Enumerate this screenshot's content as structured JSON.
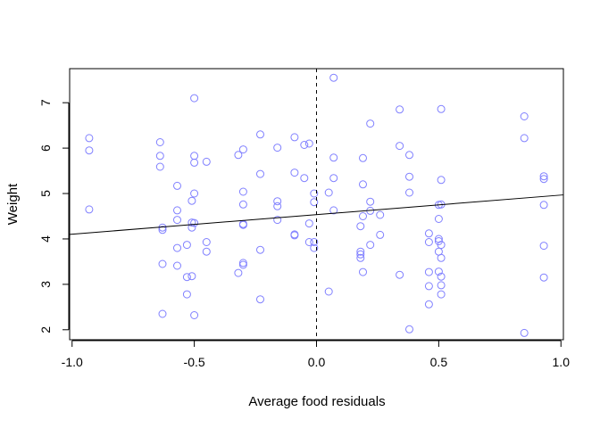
{
  "chart_data": {
    "type": "scatter",
    "title": "",
    "xlabel": "Average food residuals",
    "ylabel": "Weight",
    "xlim": [
      -1.01,
      1.01
    ],
    "ylim": [
      1.78,
      7.75
    ],
    "x_ticks": [
      -1.0,
      -0.5,
      0.0,
      0.5,
      1.0
    ],
    "x_tick_labels": [
      "-1.0",
      "-0.5",
      "0.0",
      "0.5",
      "1.0"
    ],
    "y_ticks": [
      2,
      3,
      4,
      5,
      6,
      7
    ],
    "y_tick_labels": [
      "2",
      "3",
      "4",
      "5",
      "6",
      "7"
    ],
    "grid": false,
    "point_color": "#8080ff",
    "line_color": "#000000",
    "regression_line": {
      "x": [
        -1.01,
        1.01
      ],
      "y": [
        4.1,
        4.97
      ]
    },
    "vertical_dashed_line": {
      "x": 0.0
    },
    "points": [
      {
        "x": -0.93,
        "y": 6.22
      },
      {
        "x": -0.93,
        "y": 5.95
      },
      {
        "x": -0.93,
        "y": 4.65
      },
      {
        "x": -0.64,
        "y": 6.13
      },
      {
        "x": -0.64,
        "y": 5.83
      },
      {
        "x": -0.64,
        "y": 5.59
      },
      {
        "x": -0.63,
        "y": 4.25
      },
      {
        "x": -0.63,
        "y": 4.2
      },
      {
        "x": -0.63,
        "y": 3.45
      },
      {
        "x": -0.63,
        "y": 2.35
      },
      {
        "x": -0.57,
        "y": 5.17
      },
      {
        "x": -0.57,
        "y": 4.63
      },
      {
        "x": -0.57,
        "y": 4.42
      },
      {
        "x": -0.57,
        "y": 3.8
      },
      {
        "x": -0.57,
        "y": 3.41
      },
      {
        "x": -0.53,
        "y": 3.87
      },
      {
        "x": -0.53,
        "y": 3.16
      },
      {
        "x": -0.53,
        "y": 2.78
      },
      {
        "x": -0.51,
        "y": 4.84
      },
      {
        "x": -0.51,
        "y": 4.36
      },
      {
        "x": -0.51,
        "y": 4.25
      },
      {
        "x": -0.51,
        "y": 3.18
      },
      {
        "x": -0.5,
        "y": 7.1
      },
      {
        "x": -0.5,
        "y": 5.83
      },
      {
        "x": -0.5,
        "y": 5.68
      },
      {
        "x": -0.5,
        "y": 5.0
      },
      {
        "x": -0.5,
        "y": 4.35
      },
      {
        "x": -0.5,
        "y": 2.32
      },
      {
        "x": -0.45,
        "y": 5.7
      },
      {
        "x": -0.45,
        "y": 3.93
      },
      {
        "x": -0.45,
        "y": 3.72
      },
      {
        "x": -0.32,
        "y": 5.85
      },
      {
        "x": -0.32,
        "y": 3.25
      },
      {
        "x": -0.3,
        "y": 5.97
      },
      {
        "x": -0.3,
        "y": 5.04
      },
      {
        "x": -0.3,
        "y": 4.76
      },
      {
        "x": -0.3,
        "y": 4.33
      },
      {
        "x": -0.3,
        "y": 4.31
      },
      {
        "x": -0.3,
        "y": 3.47
      },
      {
        "x": -0.3,
        "y": 3.43
      },
      {
        "x": -0.23,
        "y": 6.3
      },
      {
        "x": -0.23,
        "y": 5.43
      },
      {
        "x": -0.23,
        "y": 3.76
      },
      {
        "x": -0.23,
        "y": 2.67
      },
      {
        "x": -0.16,
        "y": 6.01
      },
      {
        "x": -0.16,
        "y": 4.83
      },
      {
        "x": -0.16,
        "y": 4.72
      },
      {
        "x": -0.16,
        "y": 4.42
      },
      {
        "x": -0.09,
        "y": 6.24
      },
      {
        "x": -0.09,
        "y": 5.46
      },
      {
        "x": -0.09,
        "y": 4.1
      },
      {
        "x": -0.09,
        "y": 4.08
      },
      {
        "x": -0.05,
        "y": 6.07
      },
      {
        "x": -0.05,
        "y": 5.34
      },
      {
        "x": -0.03,
        "y": 6.1
      },
      {
        "x": -0.03,
        "y": 4.34
      },
      {
        "x": -0.03,
        "y": 3.93
      },
      {
        "x": -0.01,
        "y": 5.0
      },
      {
        "x": -0.01,
        "y": 4.81
      },
      {
        "x": -0.01,
        "y": 3.93
      },
      {
        "x": -0.01,
        "y": 3.8
      },
      {
        "x": 0.05,
        "y": 5.02
      },
      {
        "x": 0.05,
        "y": 2.84
      },
      {
        "x": 0.07,
        "y": 7.55
      },
      {
        "x": 0.07,
        "y": 5.79
      },
      {
        "x": 0.07,
        "y": 5.34
      },
      {
        "x": 0.07,
        "y": 4.63
      },
      {
        "x": 0.18,
        "y": 4.28
      },
      {
        "x": 0.18,
        "y": 3.72
      },
      {
        "x": 0.18,
        "y": 3.66
      },
      {
        "x": 0.18,
        "y": 3.58
      },
      {
        "x": 0.19,
        "y": 5.78
      },
      {
        "x": 0.19,
        "y": 5.2
      },
      {
        "x": 0.19,
        "y": 4.5
      },
      {
        "x": 0.19,
        "y": 3.27
      },
      {
        "x": 0.22,
        "y": 6.54
      },
      {
        "x": 0.22,
        "y": 4.82
      },
      {
        "x": 0.22,
        "y": 4.62
      },
      {
        "x": 0.22,
        "y": 3.87
      },
      {
        "x": 0.26,
        "y": 4.53
      },
      {
        "x": 0.26,
        "y": 4.09
      },
      {
        "x": 0.34,
        "y": 6.85
      },
      {
        "x": 0.34,
        "y": 6.05
      },
      {
        "x": 0.34,
        "y": 3.21
      },
      {
        "x": 0.38,
        "y": 5.85
      },
      {
        "x": 0.38,
        "y": 5.37
      },
      {
        "x": 0.38,
        "y": 5.02
      },
      {
        "x": 0.38,
        "y": 2.01
      },
      {
        "x": 0.46,
        "y": 4.12
      },
      {
        "x": 0.46,
        "y": 3.93
      },
      {
        "x": 0.46,
        "y": 3.27
      },
      {
        "x": 0.46,
        "y": 2.96
      },
      {
        "x": 0.46,
        "y": 2.56
      },
      {
        "x": 0.5,
        "y": 4.75
      },
      {
        "x": 0.5,
        "y": 4.44
      },
      {
        "x": 0.5,
        "y": 4.0
      },
      {
        "x": 0.5,
        "y": 3.95
      },
      {
        "x": 0.5,
        "y": 3.72
      },
      {
        "x": 0.5,
        "y": 3.28
      },
      {
        "x": 0.51,
        "y": 6.86
      },
      {
        "x": 0.51,
        "y": 5.3
      },
      {
        "x": 0.51,
        "y": 4.76
      },
      {
        "x": 0.51,
        "y": 3.87
      },
      {
        "x": 0.51,
        "y": 3.58
      },
      {
        "x": 0.51,
        "y": 3.17
      },
      {
        "x": 0.51,
        "y": 2.98
      },
      {
        "x": 0.51,
        "y": 2.78
      },
      {
        "x": 0.85,
        "y": 6.7
      },
      {
        "x": 0.85,
        "y": 6.22
      },
      {
        "x": 0.85,
        "y": 1.93
      },
      {
        "x": 0.93,
        "y": 5.38
      },
      {
        "x": 0.93,
        "y": 5.32
      },
      {
        "x": 0.93,
        "y": 4.75
      },
      {
        "x": 0.93,
        "y": 3.85
      },
      {
        "x": 0.93,
        "y": 3.15
      }
    ]
  }
}
